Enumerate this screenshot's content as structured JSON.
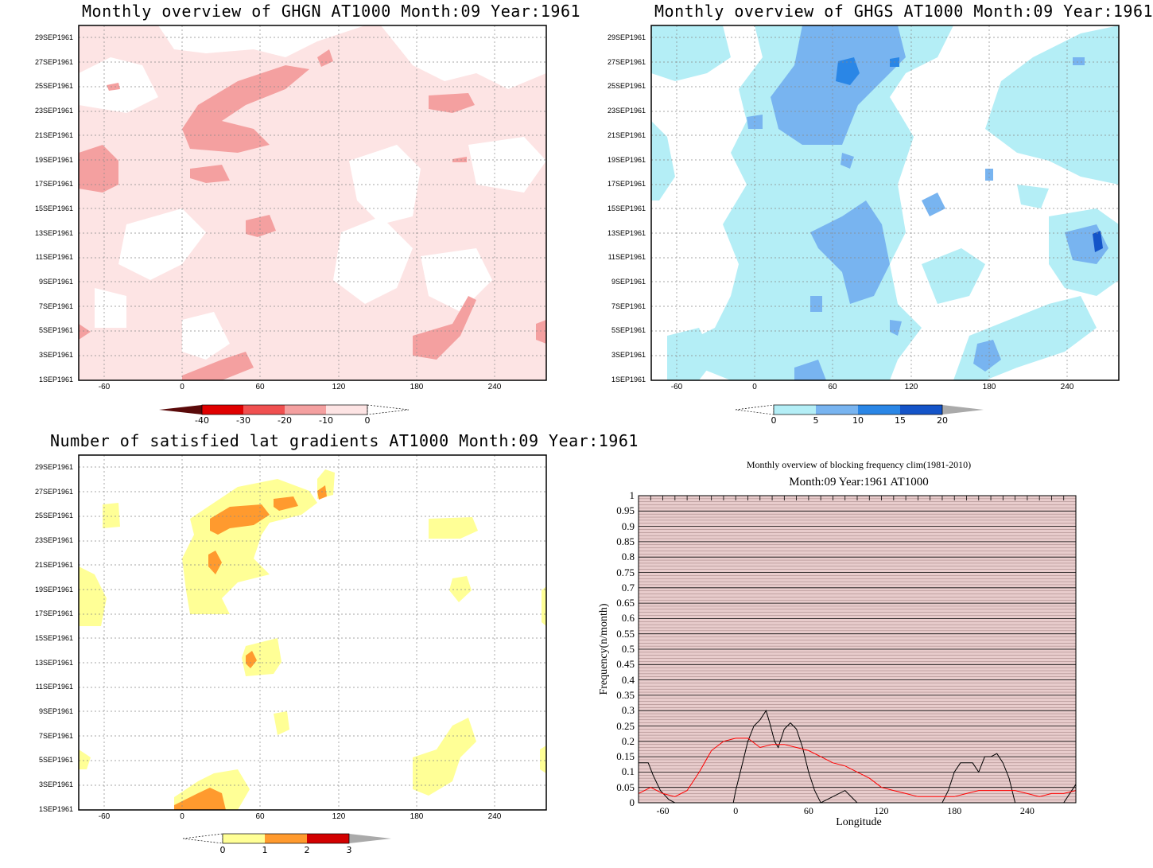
{
  "panels": {
    "ghgn": {
      "title": "Monthly overview of GHGN AT1000 Month:09 Year:1961",
      "colorbar": [
        "-40",
        "-30",
        "-20",
        "-10",
        "0"
      ],
      "colors": [
        "#e8a0a0",
        "#f9c8c8",
        "#fde4e4",
        "#ffffff"
      ]
    },
    "ghgs": {
      "title": "Monthly overview of GHGS AT1000 Month:09 Year:1961",
      "colorbar": [
        "0",
        "5",
        "10",
        "15",
        "20"
      ],
      "colors": [
        "#b4eef6",
        "#78b4f0",
        "#2a86e6",
        "#1454c8"
      ]
    },
    "grad": {
      "title": "Number of satisfied lat gradients AT1000 Month:09 Year:1961",
      "colorbar": [
        "0",
        "1",
        "2",
        "3"
      ],
      "colors": [
        "#ffff96",
        "#ff9a2e",
        "#d20000",
        "#aaaaaa"
      ]
    }
  },
  "date_ticks": [
    "29SEP1961",
    "27SEP1961",
    "25SEP1961",
    "23SEP1961",
    "21SEP1961",
    "19SEP1961",
    "17SEP1961",
    "15SEP1961",
    "13SEP1961",
    "11SEP1961",
    "9SEP1961",
    "7SEP1961",
    "5SEP1961",
    "3SEP1961",
    "1SEP1961"
  ],
  "lon_ticks": [
    "-60",
    "0",
    "60",
    "120",
    "180",
    "240"
  ],
  "chart_data": {
    "type": "line",
    "title": "Monthly overview of blocking frequency clim(1981-2010)",
    "subtitle": "Month:09 Year:1961  AT1000",
    "xlabel": "Longitude",
    "ylabel": "Frequency(n/month)",
    "xlim": [
      -80,
      280
    ],
    "ylim": [
      0,
      1
    ],
    "x_ticks": [
      "-60",
      "0",
      "60",
      "120",
      "180",
      "240"
    ],
    "y_ticks": [
      "0",
      "0.05",
      "0.1",
      "0.15",
      "0.2",
      "0.25",
      "0.3",
      "0.35",
      "0.4",
      "0.45",
      "0.5",
      "0.55",
      "0.6",
      "0.65",
      "0.7",
      "0.75",
      "0.8",
      "0.85",
      "0.9",
      "0.95",
      "1"
    ],
    "series": [
      {
        "color": "#000000",
        "x": [
          -80,
          -72,
          -68,
          -62,
          -55,
          -50,
          -40,
          -20,
          -2,
          0,
          5,
          10,
          15,
          20,
          25,
          28,
          32,
          35,
          40,
          45,
          50,
          55,
          60,
          65,
          70,
          80,
          90,
          100,
          110,
          170,
          175,
          180,
          185,
          190,
          195,
          200,
          205,
          210,
          215,
          220,
          225,
          230,
          240,
          270,
          280
        ],
        "y": [
          0.13,
          0.13,
          0.09,
          0.04,
          0.01,
          0.0,
          0.0,
          0.0,
          0.0,
          0.04,
          0.12,
          0.2,
          0.25,
          0.27,
          0.3,
          0.26,
          0.2,
          0.18,
          0.24,
          0.26,
          0.24,
          0.18,
          0.1,
          0.04,
          0.0,
          0.02,
          0.04,
          0.0,
          0.0,
          0.0,
          0.04,
          0.1,
          0.13,
          0.13,
          0.13,
          0.1,
          0.15,
          0.15,
          0.16,
          0.13,
          0.08,
          0.0,
          0.0,
          0.0,
          0.06
        ]
      },
      {
        "color": "#ff0000",
        "x": [
          -80,
          -70,
          -60,
          -50,
          -40,
          -30,
          -20,
          -10,
          0,
          10,
          20,
          30,
          40,
          50,
          60,
          70,
          80,
          90,
          100,
          110,
          120,
          130,
          140,
          150,
          160,
          170,
          180,
          190,
          200,
          210,
          220,
          230,
          240,
          250,
          260,
          270,
          280
        ],
        "y": [
          0.03,
          0.05,
          0.03,
          0.02,
          0.04,
          0.1,
          0.17,
          0.2,
          0.21,
          0.21,
          0.18,
          0.19,
          0.19,
          0.18,
          0.17,
          0.15,
          0.13,
          0.12,
          0.1,
          0.08,
          0.05,
          0.04,
          0.03,
          0.02,
          0.02,
          0.02,
          0.02,
          0.03,
          0.04,
          0.04,
          0.04,
          0.04,
          0.03,
          0.02,
          0.03,
          0.03,
          0.04
        ]
      }
    ]
  }
}
